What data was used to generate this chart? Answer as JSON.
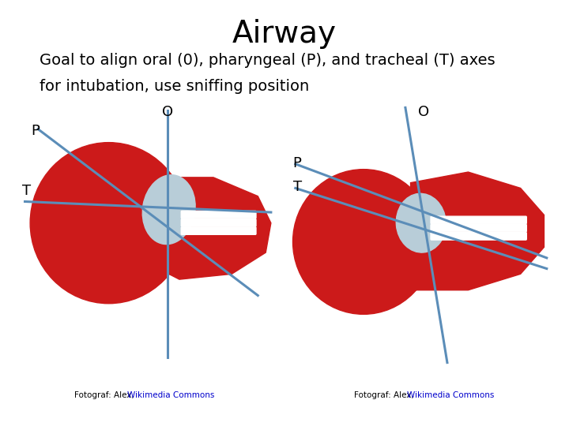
{
  "title": "Airway",
  "subtitle_line1": "Goal to align oral (0), pharyngeal (P), and tracheal (T) axes",
  "subtitle_line2": "for intubation, use sniffing position",
  "title_fontsize": 28,
  "subtitle_fontsize": 14,
  "bg_color": "#ffffff",
  "caption_text_plain": "Fotograf: Alex, ",
  "caption_link_text": "Wikimedia Commons",
  "line_color": "#5b8db8",
  "label_color": "#000000",
  "cc_box_color": "#888888"
}
